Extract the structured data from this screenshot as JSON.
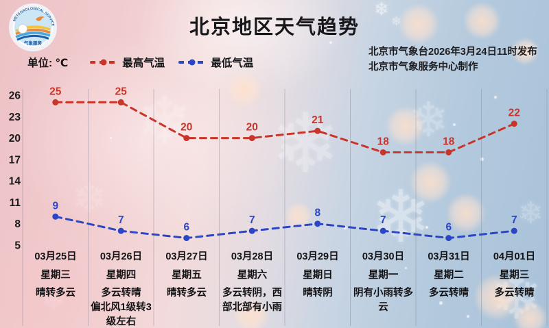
{
  "header": {
    "title": "北京地区天气趋势",
    "issue_line1": "北京市气象台2026年3月24日11时发布",
    "issue_line2": "北京市气象服务中心制作"
  },
  "logo": {
    "arc_text_top": "METEOROLOGICAL SERVICE",
    "text_bottom": "气象服务"
  },
  "legend": {
    "unit_label": "单位: ℃",
    "high_label": "最高气温",
    "low_label": "最低气温"
  },
  "chart_data": {
    "type": "line",
    "title": "北京地区天气趋势",
    "ylabel": "℃",
    "yticks": [
      26,
      23,
      20,
      17,
      14,
      11,
      8,
      5
    ],
    "ylim": [
      5,
      26
    ],
    "grid": "vertical",
    "legend_position": "top-left",
    "categories": [
      "03月25日",
      "03月26日",
      "03月27日",
      "03月28日",
      "03月29日",
      "03月30日",
      "03月31日",
      "04月01日"
    ],
    "weekdays": [
      "星期三",
      "星期四",
      "星期五",
      "星期六",
      "星期日",
      "星期一",
      "星期二",
      "星期三"
    ],
    "weather": [
      "晴转多云",
      "多云转晴\n偏北风1级转3级左右",
      "晴转多云",
      "多云转阴，西部北部有小雨",
      "晴转阴",
      "阴有小雨转多云",
      "多云转晴",
      "多云转晴"
    ],
    "series": [
      {
        "name": "最高气温",
        "color": "#c9342b",
        "values": [
          25,
          25,
          20,
          20,
          21,
          18,
          18,
          22
        ]
      },
      {
        "name": "最低气温",
        "color": "#2c45c4",
        "values": [
          9,
          7,
          6,
          7,
          8,
          7,
          6,
          7
        ]
      }
    ]
  }
}
